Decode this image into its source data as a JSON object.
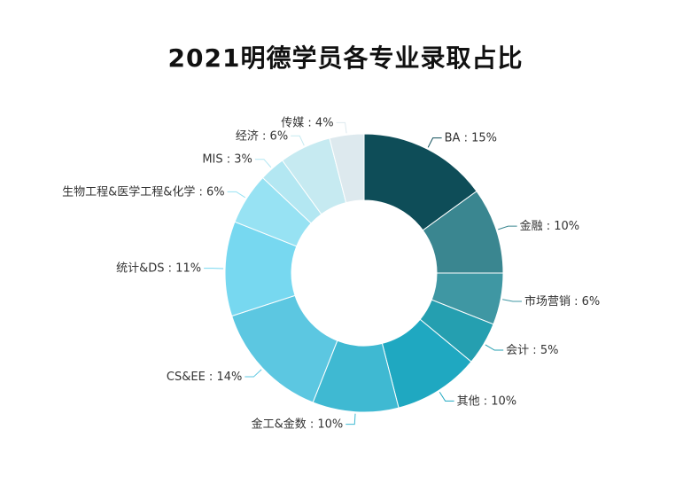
{
  "chart_data": {
    "type": "pie",
    "title": "2021明德学员各专业录取占比",
    "slices": [
      {
        "label": "BA",
        "display": "BA : 15%",
        "value": 15,
        "color": "#0e4d58"
      },
      {
        "label": "金融",
        "display": "金融 : 10%",
        "value": 10,
        "color": "#3a8690"
      },
      {
        "label": "市场营销",
        "display": "市场营销 : 6%",
        "value": 6,
        "color": "#3f97a3"
      },
      {
        "label": "会计",
        "display": "会计 : 5%",
        "value": 5,
        "color": "#259fb0"
      },
      {
        "label": "其他",
        "display": "其他 : 10%",
        "value": 10,
        "color": "#1fa8c1"
      },
      {
        "label": "金工&金数",
        "display": "金工&金数 : 10%",
        "value": 10,
        "color": "#3fb9d2"
      },
      {
        "label": "CS&EE",
        "display": "CS&EE : 14%",
        "value": 14,
        "color": "#5cc7e1"
      },
      {
        "label": "统计&DS",
        "display": "统计&DS : 11%",
        "value": 11,
        "color": "#77d8f0"
      },
      {
        "label": "生物工程&医学工程&化学",
        "display": "生物工程&医学工程&化学 : 6%",
        "value": 6,
        "color": "#97e2f3"
      },
      {
        "label": "MIS",
        "display": "MIS : 3%",
        "value": 3,
        "color": "#b3e7f2"
      },
      {
        "label": "经济",
        "display": "经济 : 6%",
        "value": 6,
        "color": "#c6eaf1"
      },
      {
        "label": "传媒",
        "display": "传媒 : 4%",
        "value": 4,
        "color": "#dde9ee"
      }
    ]
  }
}
